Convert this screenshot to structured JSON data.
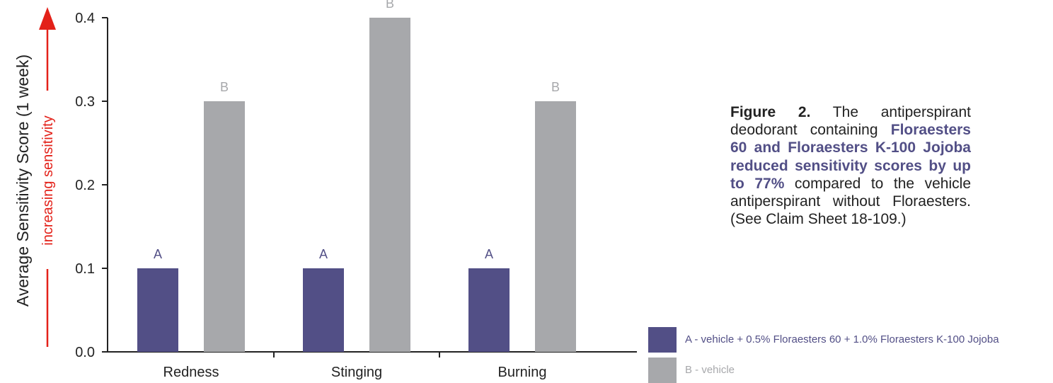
{
  "chart_data": {
    "type": "bar",
    "categories": [
      "Redness",
      "Stinging",
      "Burning"
    ],
    "series": [
      {
        "name": "A - vehicle + 0.5% Floraesters 60 + 1.0% Floraesters K-100 Jojoba",
        "letter": "A",
        "color": "#524f86",
        "values": [
          0.1,
          0.1,
          0.1
        ]
      },
      {
        "name": "B - vehicle",
        "letter": "B",
        "color": "#a7a8ab",
        "values": [
          0.3,
          0.4,
          0.3
        ]
      }
    ],
    "ylabel": "Average Sensitivity Score (1 week)",
    "arrow_label": "increasing sensitivity",
    "arrow_color": "#e32119",
    "ylim": [
      0,
      0.4
    ],
    "yticks": [
      "0.0",
      "0.1",
      "0.2",
      "0.3",
      "0.4"
    ],
    "grid": false,
    "legend_position": "bottom-right"
  },
  "caption": {
    "lead": "Figure 2.",
    "text1": " The antiperspirant deodorant containing ",
    "highlight": "Floraesters 60 and Floraesters K-100 Jojoba reduced sensitivity scores by up to 77%",
    "text2": " compared to the vehicle antiperspirant without Floraesters. (See Claim Sheet 18-109.)"
  }
}
